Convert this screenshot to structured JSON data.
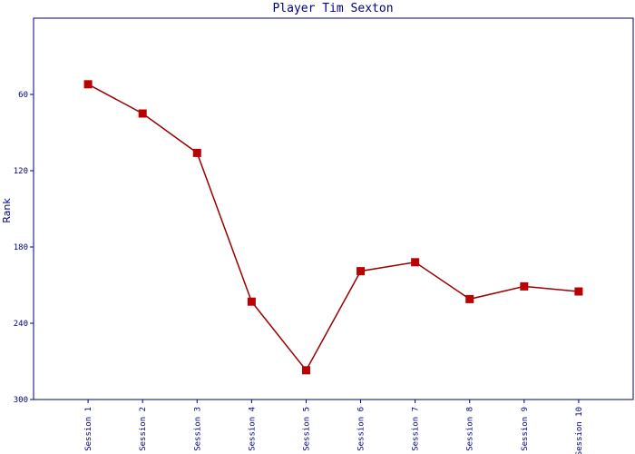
{
  "chart_data": {
    "type": "line",
    "title": "Player Tim Sexton",
    "y_label": "Rank",
    "categories": [
      "Session 1",
      "Session 2",
      "Session 3",
      "Session 4",
      "Session 5",
      "Session 6",
      "Session 7",
      "Session 8",
      "Session 9",
      "Session 10"
    ],
    "series": [
      {
        "name": "Rank",
        "color": "#990000",
        "marker_color": "#bb0000",
        "values": [
          52,
          75,
          106,
          223,
          277,
          199,
          192,
          221,
          211,
          215
        ]
      }
    ],
    "ylim": [
      0,
      300
    ],
    "yticks": [
      60,
      120,
      180,
      240,
      300
    ],
    "y_inverted": true,
    "grid": false,
    "axis_color": "#000080"
  }
}
